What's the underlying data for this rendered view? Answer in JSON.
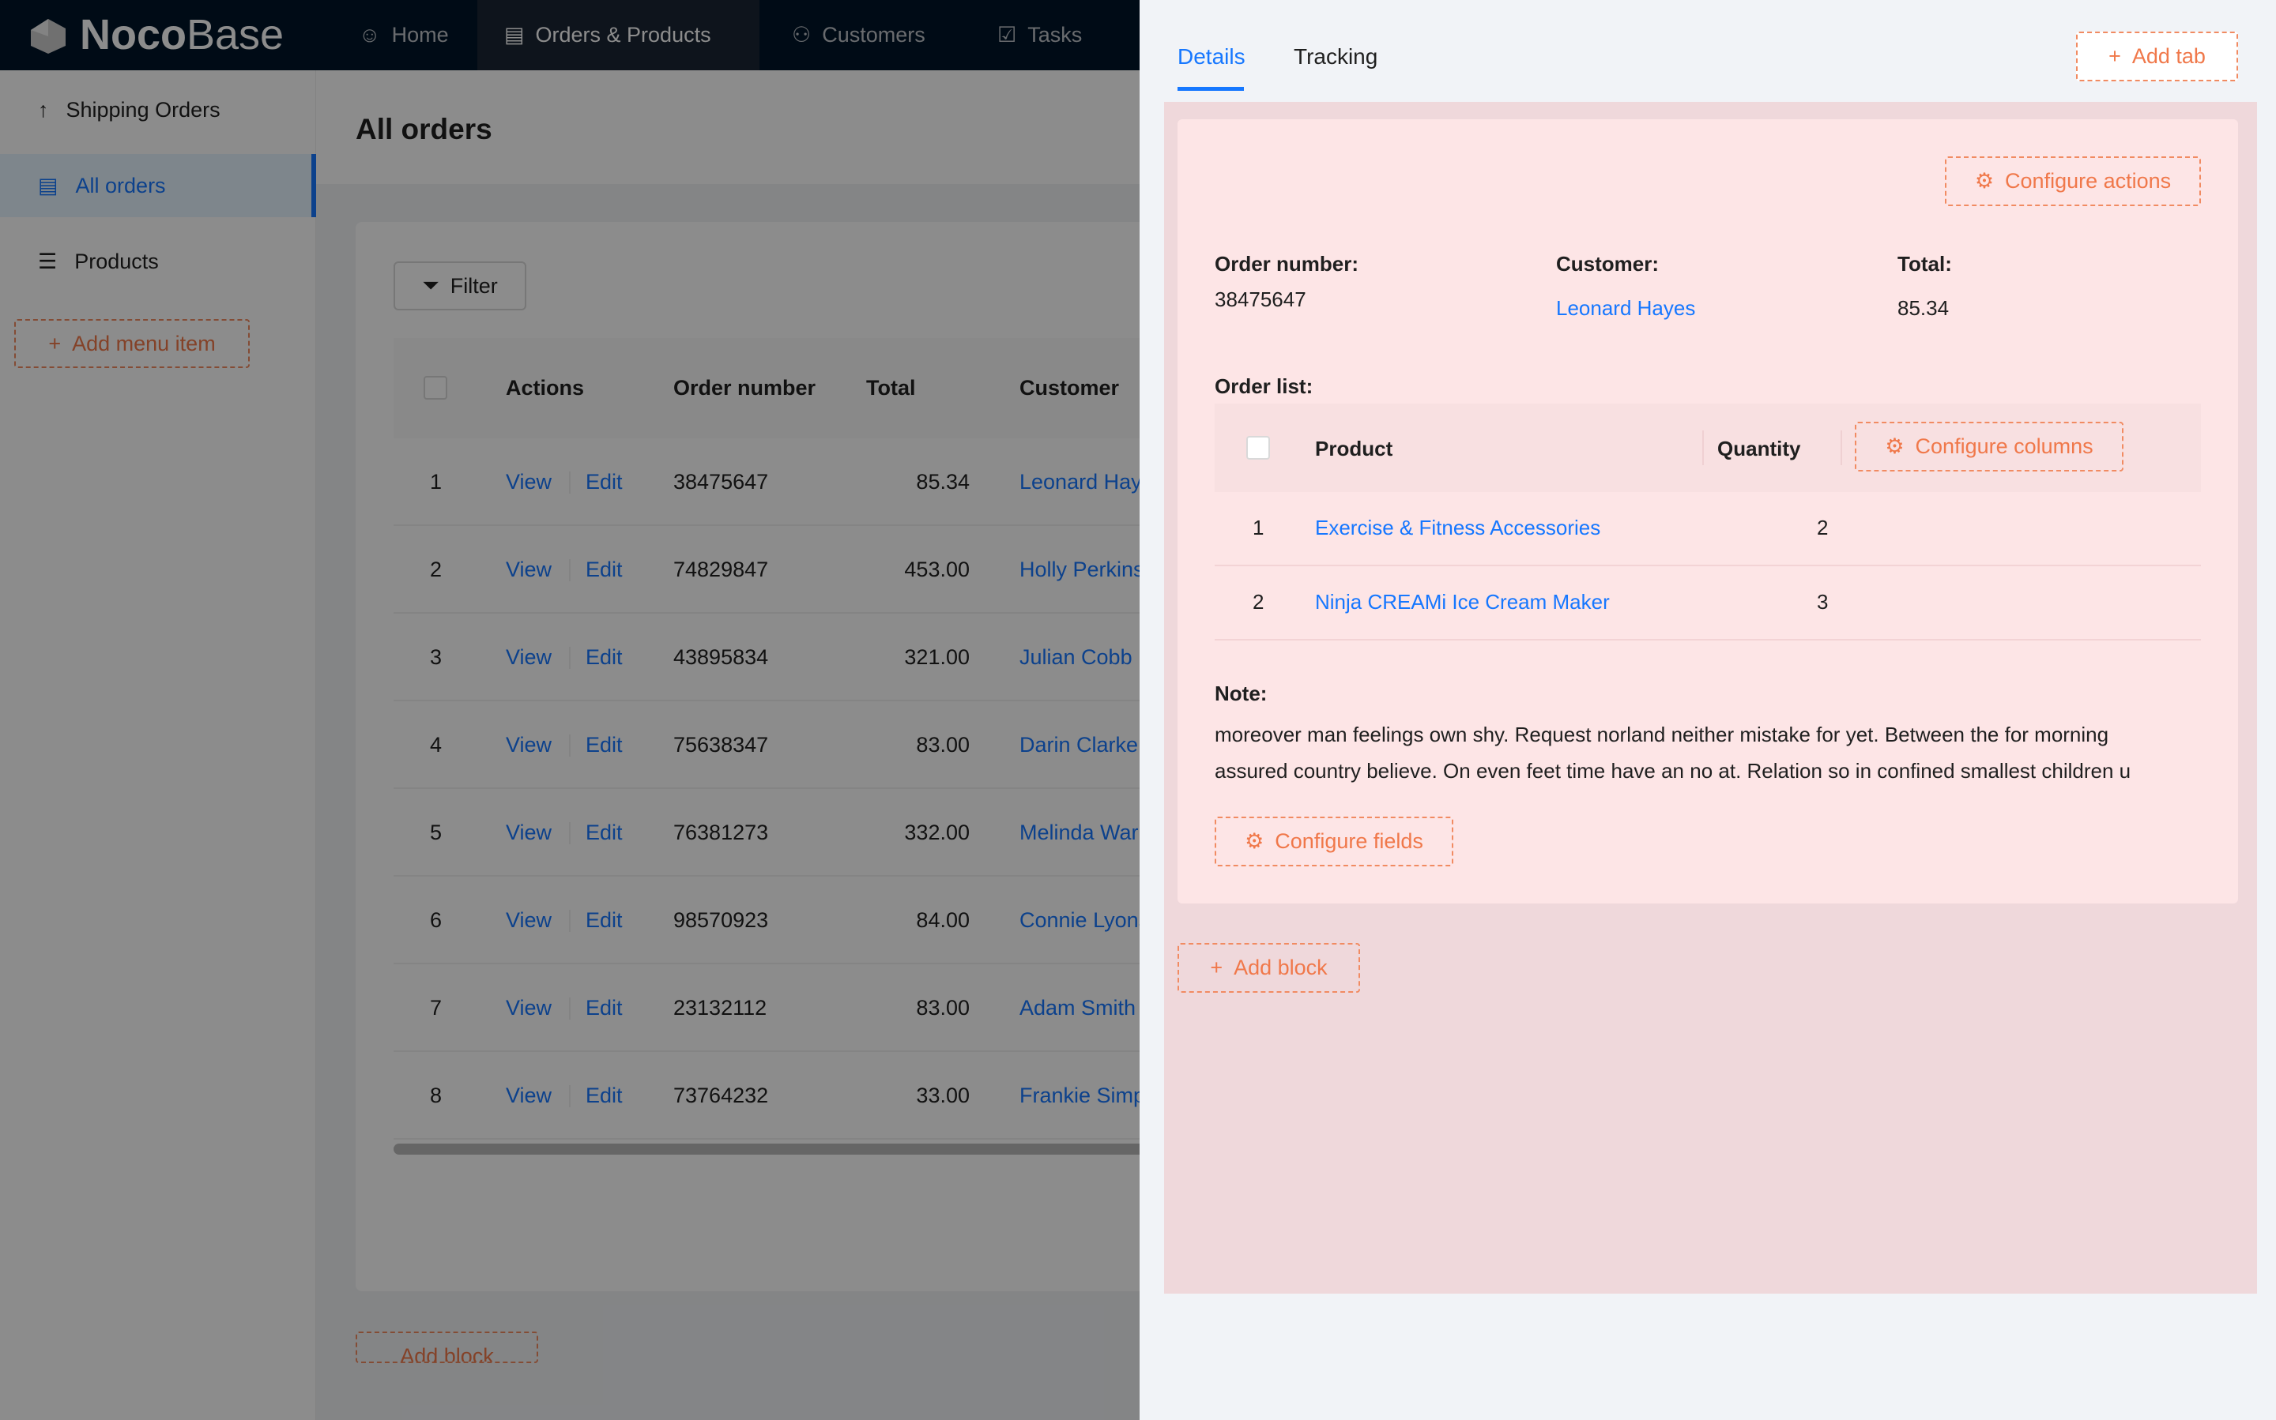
{
  "header": {
    "logo": "NocoBase",
    "logo_bold": "Noco",
    "logo_light": "Base",
    "nav": [
      {
        "label": "Home",
        "icon": "smile-icon"
      },
      {
        "label": "Orders & Products",
        "icon": "file-check-icon",
        "active": true
      },
      {
        "label": "Customers",
        "icon": "users-icon"
      },
      {
        "label": "Tasks",
        "icon": "checkbox-icon"
      }
    ]
  },
  "sidebar": {
    "items": [
      {
        "label": "Shipping Orders",
        "icon": "arrow-up-icon"
      },
      {
        "label": "All orders",
        "icon": "file-check-icon",
        "selected": true
      },
      {
        "label": "Products",
        "icon": "list-icon"
      }
    ],
    "add_menu_item": "Add menu item"
  },
  "main": {
    "title": "All orders",
    "filter": "Filter",
    "add_block": "Add block",
    "columns": [
      "Actions",
      "Order number",
      "Total",
      "Customer"
    ],
    "view": "View",
    "edit": "Edit",
    "rows": [
      {
        "n": "1",
        "order": "38475647",
        "total": "85.34",
        "customer": "Leonard Hayes"
      },
      {
        "n": "2",
        "order": "74829847",
        "total": "453.00",
        "customer": "Holly Perkins"
      },
      {
        "n": "3",
        "order": "43895834",
        "total": "321.00",
        "customer": "Julian Cobb"
      },
      {
        "n": "4",
        "order": "75638347",
        "total": "83.00",
        "customer": "Darin Clarke"
      },
      {
        "n": "5",
        "order": "76381273",
        "total": "332.00",
        "customer": "Melinda Warren"
      },
      {
        "n": "6",
        "order": "98570923",
        "total": "84.00",
        "customer": "Connie Lyons"
      },
      {
        "n": "7",
        "order": "23132112",
        "total": "83.00",
        "customer": "Adam Smith"
      },
      {
        "n": "8",
        "order": "73764232",
        "total": "33.00",
        "customer": "Frankie Simpson"
      }
    ]
  },
  "drawer": {
    "tabs": [
      {
        "label": "Details",
        "active": true
      },
      {
        "label": "Tracking"
      }
    ],
    "add_tab": "Add tab",
    "configure_actions": "Configure actions",
    "fields": [
      {
        "label": "Order number",
        "value": "38475647"
      },
      {
        "label": "Customer",
        "value": "Leonard Hayes",
        "link": true
      },
      {
        "label": "Total",
        "value": "85.34"
      }
    ],
    "order_list_label": "Order list",
    "order_list": {
      "columns": [
        "Product",
        "Quantity"
      ],
      "configure_columns": "Configure columns",
      "rows": [
        {
          "n": "1",
          "product": "Exercise & Fitness Accessories",
          "qty": "2"
        },
        {
          "n": "2",
          "product": "Ninja CREAMi Ice Cream Maker",
          "qty": "3"
        }
      ]
    },
    "note_label": "Note",
    "note_lines": [
      "moreover man feelings own shy. Request norland neither mistake for yet. Between the for morning",
      "assured country believe. On even feet time have an no at. Relation so in confined smallest children u"
    ],
    "configure_fields": "Configure fields",
    "add_block": "Add block"
  },
  "colors": {
    "primary": "#1677ff",
    "designer": "#f0784a",
    "header": "#001529"
  }
}
